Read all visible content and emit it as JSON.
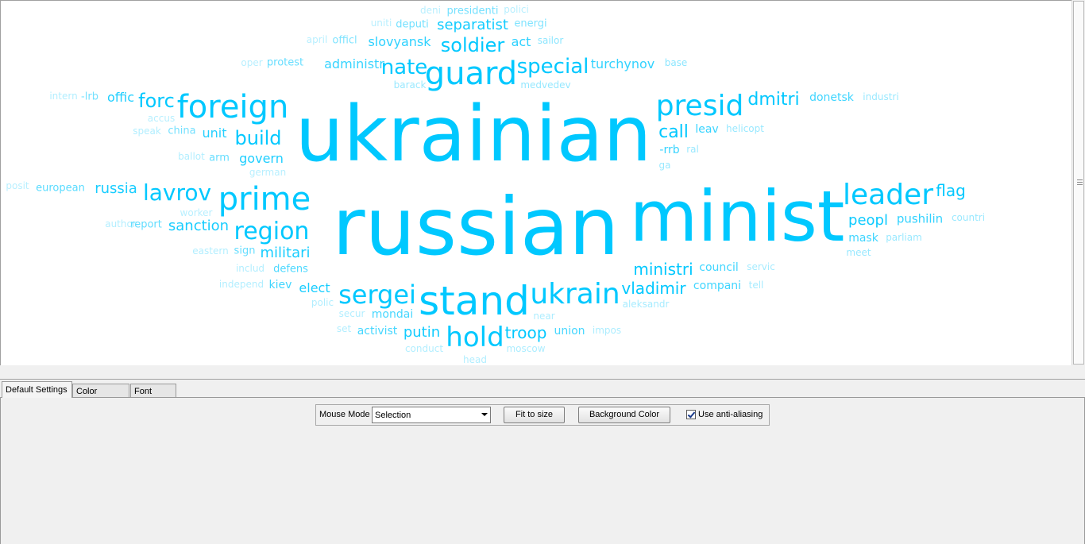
{
  "cloud": {
    "color": "#00c8ff",
    "words": [
      {
        "t": "ukrainian",
        "o": 1.0
      },
      {
        "t": "russian",
        "o": 1.0
      },
      {
        "t": "minist",
        "o": 1.0
      },
      {
        "t": "guard",
        "o": 1.0
      },
      {
        "t": "stand",
        "o": 1.0
      },
      {
        "t": "foreign",
        "o": 1.0
      },
      {
        "t": "prime",
        "o": 1.0
      },
      {
        "t": "presid",
        "o": 1.0
      },
      {
        "t": "leader",
        "o": 1.0
      },
      {
        "t": "ukrain",
        "o": 1.0
      },
      {
        "t": "sergei",
        "o": 1.0
      },
      {
        "t": "hold",
        "o": 1.0
      },
      {
        "t": "region",
        "o": 1.0
      },
      {
        "t": "lavrov",
        "o": 1.0
      },
      {
        "t": "special",
        "o": 1.0
      },
      {
        "t": "soldier",
        "o": 1.0
      },
      {
        "t": "nate",
        "o": 1.0
      },
      {
        "t": "dmitri",
        "o": 1.0
      },
      {
        "t": "forc",
        "o": 1.0
      },
      {
        "t": "build",
        "o": 1.0
      },
      {
        "t": "call",
        "o": 1.0
      },
      {
        "t": "vladimir",
        "o": 1.0
      },
      {
        "t": "ministri",
        "o": 1.0
      },
      {
        "t": "troop",
        "o": 1.0
      },
      {
        "t": "flag",
        "o": 1.0
      },
      {
        "t": "peopl",
        "o": 0.95
      },
      {
        "t": "separatist",
        "o": 0.92
      },
      {
        "t": "putin",
        "o": 0.92
      },
      {
        "t": "sanction",
        "o": 0.9
      },
      {
        "t": "militari",
        "o": 0.9
      },
      {
        "t": "russia",
        "o": 0.9
      },
      {
        "t": "govern",
        "o": 0.88
      },
      {
        "t": "elect",
        "o": 0.9
      },
      {
        "t": "offic",
        "o": 0.88
      },
      {
        "t": "unit",
        "o": 0.85
      },
      {
        "t": "slovyansk",
        "o": 0.82
      },
      {
        "t": "act",
        "o": 0.82
      },
      {
        "t": "turchynov",
        "o": 0.8
      },
      {
        "t": "pushilin",
        "o": 0.8
      },
      {
        "t": "administr",
        "o": 0.78
      },
      {
        "t": "donetsk",
        "o": 0.75
      },
      {
        "t": "-rrb",
        "o": 0.78
      },
      {
        "t": "leav",
        "o": 0.78
      },
      {
        "t": "mask",
        "o": 0.75
      },
      {
        "t": "council",
        "o": 0.75
      },
      {
        "t": "compani",
        "o": 0.75
      },
      {
        "t": "kiev",
        "o": 0.75
      },
      {
        "t": "mondai",
        "o": 0.72
      },
      {
        "t": "activist",
        "o": 0.72
      },
      {
        "t": "union",
        "o": 0.72
      },
      {
        "t": "defens",
        "o": 0.7
      },
      {
        "t": "european",
        "o": 0.65
      },
      {
        "t": "report",
        "o": 0.62
      },
      {
        "t": "sign",
        "o": 0.6
      },
      {
        "t": "arm",
        "o": 0.6
      },
      {
        "t": "protest",
        "o": 0.6
      },
      {
        "t": "deputi",
        "o": 0.55
      },
      {
        "t": "presidenti",
        "o": 0.55
      },
      {
        "t": "energi",
        "o": 0.5
      },
      {
        "t": "-lrb",
        "o": 0.55
      },
      {
        "t": "china",
        "o": 0.55
      },
      {
        "t": "officl",
        "o": 0.5
      },
      {
        "t": "sailor",
        "o": 0.45
      },
      {
        "t": "base",
        "o": 0.45
      },
      {
        "t": "medvedev",
        "o": 0.42
      },
      {
        "t": "barack",
        "o": 0.4
      },
      {
        "t": "industri",
        "o": 0.4
      },
      {
        "t": "helicopt",
        "o": 0.4
      },
      {
        "t": "ral",
        "o": 0.4
      },
      {
        "t": "ga",
        "o": 0.4
      },
      {
        "t": "countri",
        "o": 0.4
      },
      {
        "t": "parliam",
        "o": 0.4
      },
      {
        "t": "meet",
        "o": 0.4
      },
      {
        "t": "servic",
        "o": 0.35
      },
      {
        "t": "tell",
        "o": 0.35
      },
      {
        "t": "aleksandr",
        "o": 0.35
      },
      {
        "t": "impos",
        "o": 0.32
      },
      {
        "t": "moscow",
        "o": 0.32
      },
      {
        "t": "near",
        "o": 0.32
      },
      {
        "t": "head",
        "o": 0.3
      },
      {
        "t": "conduct",
        "o": 0.3
      },
      {
        "t": "set",
        "o": 0.3
      },
      {
        "t": "secur",
        "o": 0.3
      },
      {
        "t": "polic",
        "o": 0.3
      },
      {
        "t": "independ",
        "o": 0.3
      },
      {
        "t": "includ",
        "o": 0.3
      },
      {
        "t": "eastern",
        "o": 0.3
      },
      {
        "t": "author",
        "o": 0.3
      },
      {
        "t": "worker",
        "o": 0.28
      },
      {
        "t": "posit",
        "o": 0.28
      },
      {
        "t": "german",
        "o": 0.28
      },
      {
        "t": "ballot",
        "o": 0.3
      },
      {
        "t": "speak",
        "o": 0.3
      },
      {
        "t": "accus",
        "o": 0.28
      },
      {
        "t": "intern",
        "o": 0.3
      },
      {
        "t": "oper",
        "o": 0.28
      },
      {
        "t": "april",
        "o": 0.28
      },
      {
        "t": "uniti",
        "o": 0.28
      },
      {
        "t": "deni",
        "o": 0.28
      },
      {
        "t": "polici",
        "o": 0.28
      }
    ]
  },
  "tabs": [
    {
      "label": "Default Settings",
      "active": true
    },
    {
      "label": "Color Legend",
      "active": false
    },
    {
      "label": "Font Style",
      "active": false
    }
  ],
  "toolbar": {
    "mouse_mode_label": "Mouse Mode",
    "mouse_mode_value": "Selection",
    "fit_label": "Fit to size",
    "bg_label": "Background Color",
    "antialias_label": "Use anti-aliasing",
    "antialias_checked": true
  }
}
